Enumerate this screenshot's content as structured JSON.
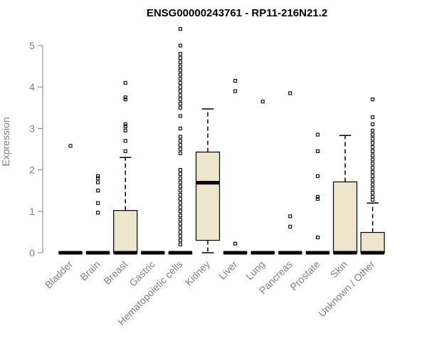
{
  "chart_data": {
    "type": "box",
    "title": "ENSG00000243761 - RP11-216N21.2",
    "ylabel": "Expression",
    "xlabel": "",
    "ylim": [
      0,
      5.4
    ],
    "yticks": [
      0,
      1,
      2,
      3,
      4,
      5
    ],
    "colors": {
      "box_fill": "#ede6cc",
      "axis": "#808080"
    },
    "categories": [
      "Bladder",
      "Brain",
      "Breast",
      "Gastric",
      "Hematopoietic cells",
      "Kidney",
      "Liver",
      "Lung",
      "Pancreas",
      "Prostate",
      "Skin",
      "Unknown / Other"
    ],
    "boxes": [
      {
        "name": "Bladder",
        "q1": 0,
        "median": 0,
        "q3": 0,
        "lower": 0,
        "upper": 0,
        "outliers": [
          2.58
        ]
      },
      {
        "name": "Brain",
        "q1": 0,
        "median": 0,
        "q3": 0,
        "lower": 0,
        "upper": 0,
        "outliers": [
          0.97,
          1.2,
          1.5,
          1.7,
          1.8,
          1.85
        ]
      },
      {
        "name": "Breast",
        "q1": 0,
        "median": 0,
        "q3": 1.02,
        "lower": 0,
        "upper": 2.3,
        "outliers": [
          2.45,
          2.7,
          2.95,
          3.05,
          3.1,
          3.7,
          3.75,
          4.1
        ]
      },
      {
        "name": "Gastric",
        "q1": 0,
        "median": 0,
        "q3": 0,
        "lower": 0,
        "upper": 0,
        "outliers": []
      },
      {
        "name": "Hematopoietic cells",
        "q1": 0,
        "median": 0,
        "q3": 0,
        "lower": 0,
        "upper": 0,
        "outliers": [
          0.2,
          0.3,
          0.4,
          0.5,
          0.6,
          0.7,
          0.8,
          0.9,
          1.0,
          1.1,
          1.2,
          1.3,
          1.4,
          1.5,
          1.6,
          1.7,
          1.8,
          1.9,
          2.0,
          2.4,
          2.5,
          2.6,
          2.7,
          2.8,
          3.0,
          3.3,
          3.5,
          3.6,
          3.7,
          3.8,
          3.9,
          4.0,
          4.1,
          4.2,
          4.3,
          4.4,
          4.5,
          4.6,
          4.7,
          4.8,
          5.0,
          5.4
        ]
      },
      {
        "name": "Kidney",
        "q1": 0.3,
        "median": 1.69,
        "q3": 2.43,
        "lower": 0,
        "upper": 3.47,
        "outliers": []
      },
      {
        "name": "Liver",
        "q1": 0,
        "median": 0,
        "q3": 0,
        "lower": 0,
        "upper": 0,
        "outliers": [
          0.22,
          3.9,
          4.15
        ]
      },
      {
        "name": "Lung",
        "q1": 0,
        "median": 0,
        "q3": 0,
        "lower": 0,
        "upper": 0,
        "outliers": [
          3.65
        ]
      },
      {
        "name": "Pancreas",
        "q1": 0,
        "median": 0,
        "q3": 0,
        "lower": 0,
        "upper": 0,
        "outliers": [
          0.63,
          0.88,
          3.85
        ]
      },
      {
        "name": "Prostate",
        "q1": 0,
        "median": 0,
        "q3": 0,
        "lower": 0,
        "upper": 0,
        "outliers": [
          0.37,
          1.3,
          1.35,
          1.85,
          2.45,
          2.85
        ]
      },
      {
        "name": "Skin",
        "q1": 0,
        "median": 0,
        "q3": 1.71,
        "lower": 0,
        "upper": 2.83,
        "outliers": []
      },
      {
        "name": "Unknown / Other",
        "q1": 0,
        "median": 0,
        "q3": 0.49,
        "lower": 0,
        "upper": 1.2,
        "outliers": [
          1.28,
          1.35,
          1.45,
          1.55,
          1.65,
          1.75,
          1.85,
          1.95,
          2.05,
          2.15,
          2.25,
          2.35,
          2.45,
          2.55,
          2.65,
          2.75,
          2.85,
          2.95,
          3.1,
          3.27,
          3.7
        ]
      }
    ]
  }
}
